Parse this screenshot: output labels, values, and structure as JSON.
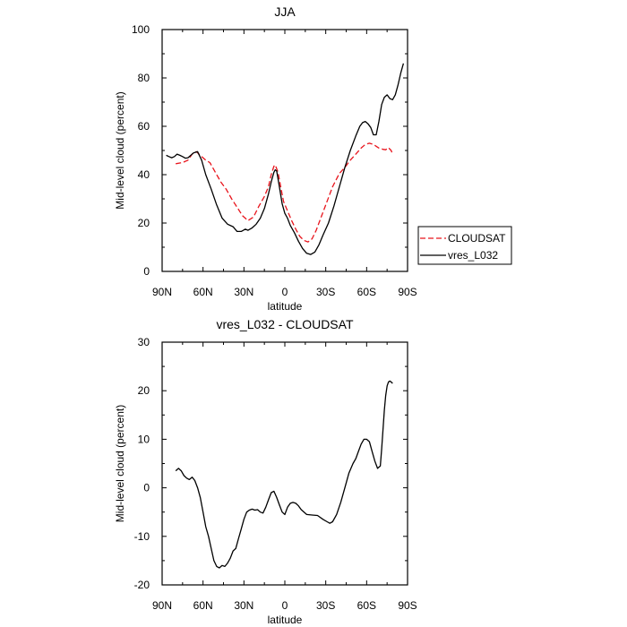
{
  "chart_data": [
    {
      "type": "line",
      "title": "JJA",
      "xlabel": "latitude",
      "ylabel": "Mid-level cloud (percent)",
      "xlim": [
        90,
        -90
      ],
      "ylim": [
        0,
        100
      ],
      "xticks": [
        90,
        60,
        30,
        0,
        -30,
        -60,
        -90
      ],
      "xtick_labels": [
        "90N",
        "60N",
        "30N",
        "0",
        "30S",
        "60S",
        "90S"
      ],
      "yticks": [
        0,
        20,
        40,
        60,
        80,
        100
      ],
      "ytick_labels": [
        "0",
        "20",
        "40",
        "60",
        "80",
        "100"
      ],
      "legend": "right",
      "series": [
        {
          "name": "CLOUDSAT",
          "color": "#e8141c",
          "dash": "dashed",
          "x": [
            80,
            75,
            71,
            68,
            65,
            62,
            58,
            55,
            51,
            47,
            43,
            39,
            35,
            31,
            27,
            23,
            19,
            15,
            12,
            10,
            8,
            7,
            5,
            3,
            1,
            -2,
            -5,
            -8,
            -11,
            -14,
            -17,
            -20,
            -23,
            -27,
            -31,
            -35,
            -40,
            -44,
            -48,
            -52,
            -56,
            -59,
            -62,
            -65,
            -69,
            -72,
            -74,
            -76,
            -78,
            -79
          ],
          "y": [
            44.5,
            45,
            46,
            48.5,
            49.5,
            48,
            46,
            45,
            41,
            37,
            34,
            30,
            26.5,
            23,
            21,
            22.5,
            27,
            31,
            35,
            40,
            43.5,
            44,
            41,
            35,
            29,
            25,
            21,
            17.5,
            14.5,
            12.8,
            12.2,
            13.5,
            17,
            23,
            29,
            35,
            40.5,
            43,
            46,
            48.5,
            51,
            52.5,
            53,
            52.5,
            51,
            50.5,
            50.3,
            51.2,
            50,
            48.5
          ]
        },
        {
          "name": "vres_L032",
          "color": "#000000",
          "dash": "solid",
          "x": [
            87,
            85,
            83,
            81,
            79,
            77,
            75,
            73,
            71,
            69,
            67,
            64,
            61,
            58,
            54,
            50,
            46,
            42,
            38,
            35,
            32,
            29,
            27,
            24,
            21,
            18,
            15,
            12,
            10,
            8,
            7,
            6,
            4,
            2,
            0,
            -2,
            -4,
            -7,
            -10,
            -13,
            -16,
            -19,
            -22,
            -25,
            -28,
            -32,
            -36,
            -40,
            -44,
            -48,
            -52,
            -55,
            -57,
            -59,
            -61,
            -63,
            -65,
            -67,
            -69,
            -71,
            -73,
            -75,
            -77,
            -79,
            -81,
            -83,
            -85,
            -87
          ],
          "y": [
            48,
            47.5,
            47,
            47.5,
            48.5,
            48,
            47.5,
            46.8,
            47,
            48,
            49,
            49.5,
            46,
            40,
            34,
            27.5,
            22,
            19.5,
            18.5,
            16.5,
            16.5,
            17.5,
            17,
            18,
            19.5,
            22,
            26,
            32,
            37,
            41,
            42,
            41.5,
            35,
            28,
            24,
            22,
            19,
            16,
            12.5,
            9.5,
            7.5,
            7,
            8,
            11,
            15,
            20,
            27,
            35,
            43,
            50,
            56,
            60,
            61.5,
            62,
            61,
            59.5,
            56.5,
            56.5,
            62,
            69,
            72,
            73,
            71.5,
            71,
            73,
            77,
            82,
            86
          ]
        }
      ]
    },
    {
      "type": "line",
      "title": "vres_L032 - CLOUDSAT",
      "xlabel": "latitude",
      "ylabel": "Mid-level cloud (percent)",
      "xlim": [
        90,
        -90
      ],
      "ylim": [
        -20,
        30
      ],
      "xticks": [
        90,
        60,
        30,
        0,
        -30,
        -60,
        -90
      ],
      "xtick_labels": [
        "90N",
        "60N",
        "30N",
        "0",
        "30S",
        "60S",
        "90S"
      ],
      "yticks": [
        -20,
        -10,
        0,
        10,
        20,
        30
      ],
      "ytick_labels": [
        "-20",
        "-10",
        "0",
        "10",
        "20",
        "30"
      ],
      "series": [
        {
          "color": "#000000",
          "dash": "solid",
          "x": [
            80,
            78,
            76,
            74,
            72,
            70,
            68,
            66,
            64,
            62,
            60,
            58,
            56,
            54,
            52,
            50,
            48,
            46,
            44,
            42,
            40,
            38,
            36,
            34,
            32,
            30,
            28,
            26,
            24,
            22,
            20,
            18,
            16,
            14,
            12,
            10,
            8,
            6,
            4,
            2,
            0,
            -2,
            -4,
            -6,
            -8,
            -10,
            -12,
            -16,
            -20,
            -24,
            -28,
            -31,
            -33,
            -35,
            -38,
            -41,
            -44,
            -47,
            -50,
            -52,
            -54,
            -56,
            -58,
            -60,
            -62,
            -64,
            -66,
            -68,
            -70,
            -71,
            -72,
            -73,
            -74,
            -75,
            -76,
            -77,
            -78,
            -79
          ],
          "y": [
            3.5,
            4,
            3.5,
            2.5,
            2,
            1.7,
            2.2,
            1.5,
            0,
            -2,
            -5,
            -8,
            -10,
            -12.5,
            -15,
            -16.2,
            -16.5,
            -16,
            -16.2,
            -15.5,
            -14.5,
            -13,
            -12.5,
            -10.5,
            -8.5,
            -6.5,
            -5,
            -4.6,
            -4.4,
            -4.6,
            -4.5,
            -5,
            -5.2,
            -4,
            -2.5,
            -1,
            -0.7,
            -2,
            -3.5,
            -5,
            -5.5,
            -4,
            -3.2,
            -3,
            -3.2,
            -3.7,
            -4.5,
            -5.5,
            -5.6,
            -5.7,
            -6.5,
            -7,
            -7.3,
            -7,
            -5.5,
            -3,
            0,
            3,
            5,
            6,
            7.5,
            9,
            10,
            10,
            9.5,
            7.5,
            5.5,
            4,
            4.5,
            8,
            12,
            16,
            19,
            21,
            21.8,
            22,
            21.8,
            21.5
          ]
        }
      ]
    }
  ]
}
